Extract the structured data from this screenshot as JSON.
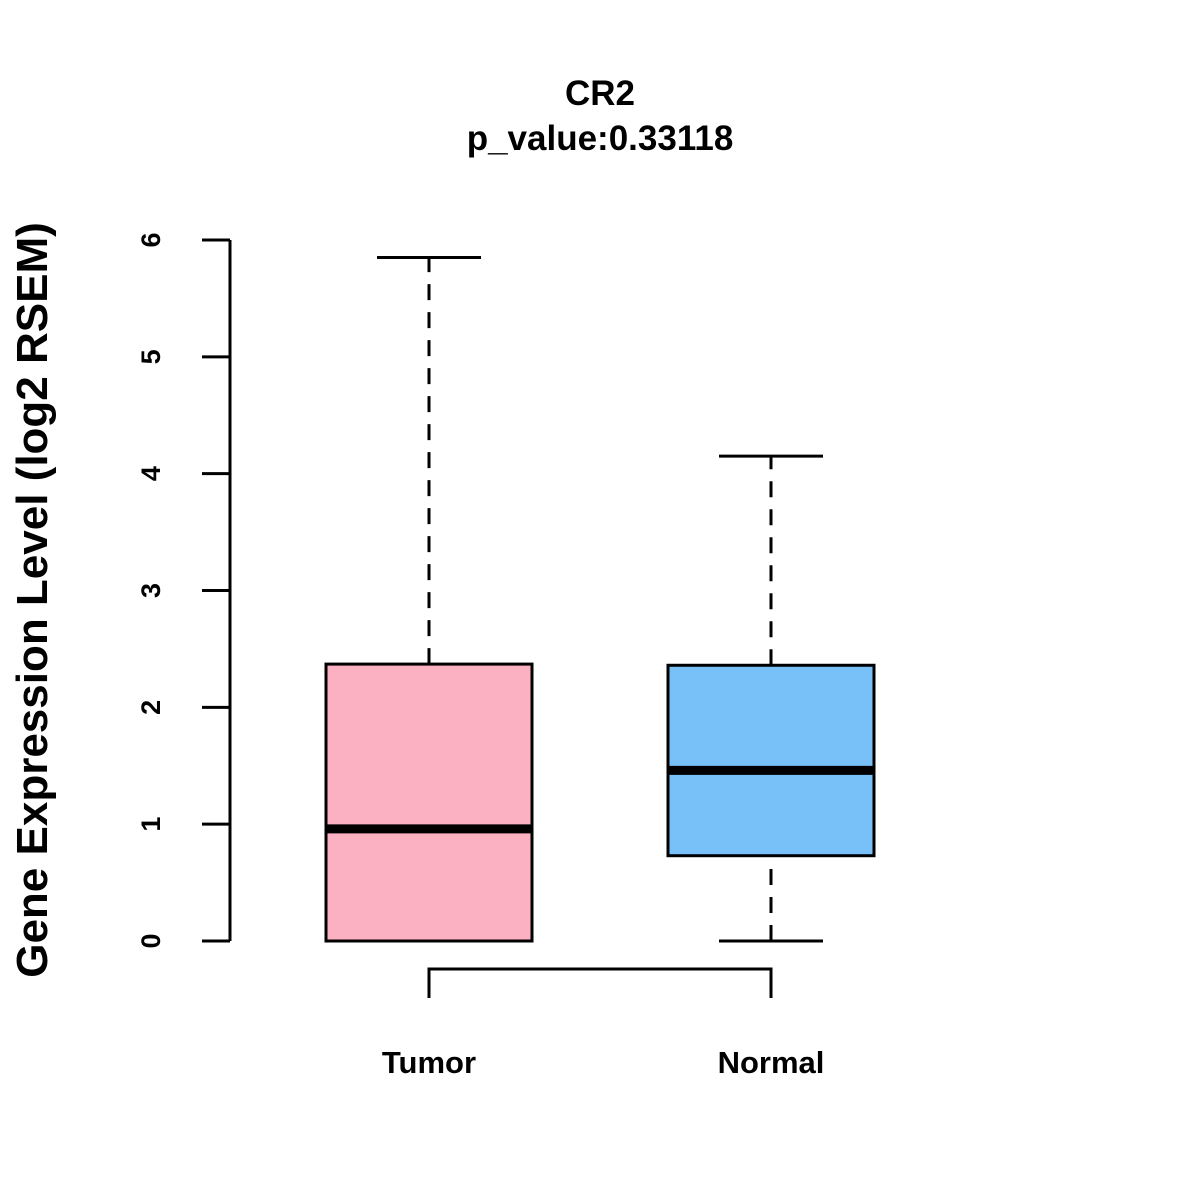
{
  "chart_data": {
    "type": "boxplot",
    "title": "CR2",
    "subtitle": "p_value:0.33118",
    "xlabel": "",
    "ylabel": "Gene Expression Level (log2 RSEM)",
    "ylim": [
      0,
      6
    ],
    "yticks": [
      0,
      1,
      2,
      3,
      4,
      5,
      6
    ],
    "grid": false,
    "categories": [
      "Tumor",
      "Normal"
    ],
    "boxes": [
      {
        "name": "Tumor",
        "min": 0.0,
        "q1": 0.0,
        "median": 0.96,
        "q3": 2.37,
        "max": 5.85,
        "color": "#FBB1C2"
      },
      {
        "name": "Normal",
        "min": 0.0,
        "q1": 0.73,
        "median": 1.46,
        "q3": 2.36,
        "max": 4.15,
        "color": "#77C0F8"
      }
    ],
    "comparison_bracket": [
      "Tumor",
      "Normal"
    ]
  }
}
